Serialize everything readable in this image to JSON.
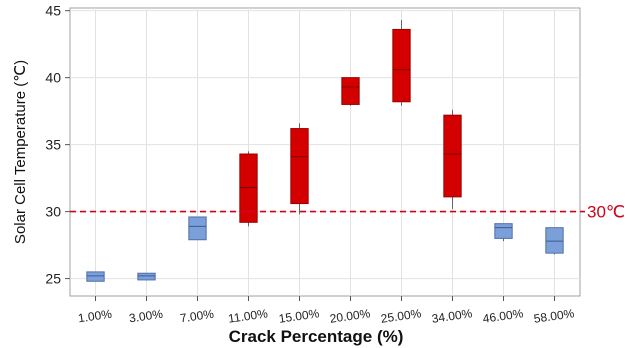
{
  "chart_data": {
    "type": "box",
    "xlabel": "Crack Percentage (%)",
    "ylabel": "Solar Cell Temperature (℃)",
    "categories": [
      "1.00%",
      "3.00%",
      "7.00%",
      "11.00%",
      "15.00%",
      "20.00%",
      "25.00%",
      "34.00%",
      "46.00%",
      "58.00%"
    ],
    "yticks": [
      25,
      30,
      35,
      40,
      45
    ],
    "ylim": [
      23.7,
      45.2
    ],
    "grid": true,
    "reference_line": {
      "value": 30,
      "label": "30℃",
      "color": "#d0021b",
      "style": "dashed"
    },
    "boxes": [
      {
        "category": "1.00%",
        "whisker_low": 24.8,
        "q1": 24.8,
        "median": 25.2,
        "q3": 25.5,
        "whisker_high": 25.5,
        "color": "#7b9fd8"
      },
      {
        "category": "3.00%",
        "whisker_low": 24.9,
        "q1": 24.9,
        "median": 25.2,
        "q3": 25.4,
        "whisker_high": 25.4,
        "color": "#7b9fd8"
      },
      {
        "category": "7.00%",
        "whisker_low": 27.9,
        "q1": 27.9,
        "median": 28.9,
        "q3": 29.6,
        "whisker_high": 29.6,
        "color": "#7b9fd8"
      },
      {
        "category": "11.00%",
        "whisker_low": 28.9,
        "q1": 29.2,
        "median": 31.8,
        "q3": 34.3,
        "whisker_high": 34.5,
        "color": "#d40000"
      },
      {
        "category": "15.00%",
        "whisker_low": 29.8,
        "q1": 30.6,
        "median": 34.1,
        "q3": 36.2,
        "whisker_high": 36.6,
        "color": "#d40000"
      },
      {
        "category": "20.00%",
        "whisker_low": 37.9,
        "q1": 38.0,
        "median": 39.3,
        "q3": 40.0,
        "whisker_high": 40.0,
        "color": "#d40000"
      },
      {
        "category": "25.00%",
        "whisker_low": 37.9,
        "q1": 38.2,
        "median": 40.6,
        "q3": 43.6,
        "whisker_high": 44.3,
        "color": "#d40000"
      },
      {
        "category": "34.00%",
        "whisker_low": 30.2,
        "q1": 31.1,
        "median": 34.3,
        "q3": 37.2,
        "whisker_high": 37.6,
        "color": "#d40000"
      },
      {
        "category": "46.00%",
        "whisker_low": 27.8,
        "q1": 28.0,
        "median": 28.8,
        "q3": 29.1,
        "whisker_high": 29.1,
        "color": "#7b9fd8"
      },
      {
        "category": "58.00%",
        "whisker_low": 26.8,
        "q1": 26.9,
        "median": 27.8,
        "q3": 28.8,
        "whisker_high": 28.8,
        "color": "#7b9fd8"
      }
    ]
  }
}
